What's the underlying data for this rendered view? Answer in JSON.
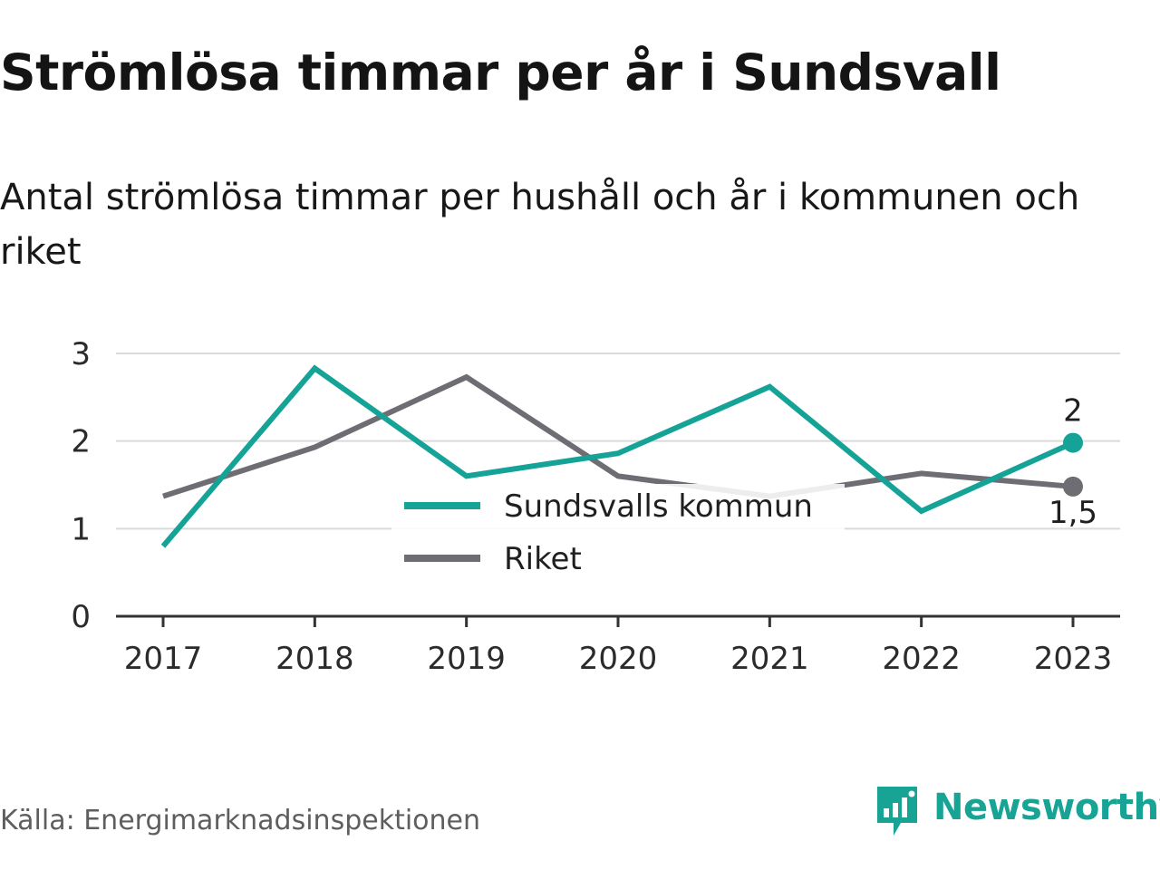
{
  "title": "Strömlösa timmar per år i Sundsvall",
  "subtitle": "Antal strömlösa timmar per hushåll och år i kommunen och riket",
  "source": "Källa: Energimarknadsinspektionen",
  "brand": {
    "name": "Newsworthy",
    "logo_icon": "newsworthy-logo-icon",
    "color": "#17a495"
  },
  "chart_data": {
    "type": "line",
    "title": "",
    "xlabel": "",
    "ylabel": "",
    "x": [
      "2017",
      "2018",
      "2019",
      "2020",
      "2021",
      "2022",
      "2023"
    ],
    "yticks": [
      "0",
      "1",
      "2",
      "3"
    ],
    "ylim": [
      0,
      3
    ],
    "grid": true,
    "legend_position": "center",
    "series": [
      {
        "name": "Sundsvalls kommun",
        "color": "#15a398",
        "values": [
          0.8,
          2.83,
          1.6,
          1.86,
          2.62,
          1.2,
          1.98
        ],
        "end_label": "2"
      },
      {
        "name": "Riket",
        "color": "#6e6d74",
        "values": [
          1.37,
          1.93,
          2.73,
          1.6,
          1.37,
          1.63,
          1.48
        ],
        "end_label": "1,5"
      }
    ]
  }
}
